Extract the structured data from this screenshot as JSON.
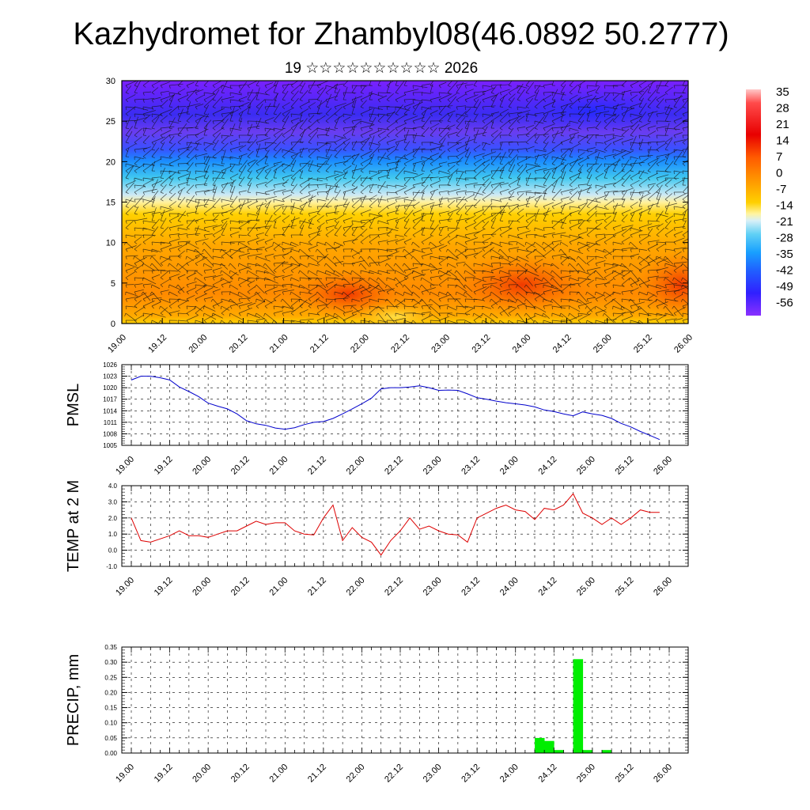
{
  "title": "Kazhydromet for Zhambyl08(46.0892 50.2777)",
  "subtitle": "19 ☆☆☆☆☆☆☆☆☆☆ 2026",
  "time_ticks": [
    "19.00",
    "19.12",
    "20.00",
    "20.12",
    "21.00",
    "21.12",
    "22.00",
    "22.12",
    "23.00",
    "23.12",
    "24.00",
    "24.12",
    "25.00",
    "25.12",
    "26.00"
  ],
  "chart_data": [
    {
      "type": "heatmap",
      "name": "temperature-cross-section",
      "ylabel": "",
      "ylim": [
        0,
        30
      ],
      "y_ticks": [
        0,
        5,
        10,
        15,
        20,
        25,
        30
      ],
      "colorbar_labels": [
        "35",
        "28",
        "21",
        "14",
        "7",
        "0",
        "-7",
        "-14",
        "-21",
        "-28",
        "-35",
        "-42",
        "-49",
        "-56"
      ],
      "colorbar_range": [
        -60,
        38
      ],
      "colors": {
        "cold": "#6a00ff",
        "cool": "#1a8cff",
        "mild": "#ffe600",
        "warm": "#ff8c00",
        "hot": "#e60000"
      }
    },
    {
      "type": "line",
      "name": "pmsl",
      "ylabel": "PMSL",
      "ylim": [
        1005,
        1026
      ],
      "y_ticks": [
        "1005",
        "1008",
        "1011",
        "1014",
        "1017",
        "1020",
        "1023",
        "1026"
      ],
      "color": "#0000cc",
      "x": [
        0,
        3,
        6,
        9,
        12,
        15,
        18,
        21,
        24,
        27,
        30,
        33,
        36,
        39,
        42,
        45,
        48,
        51,
        54,
        57,
        60,
        63,
        66,
        69,
        72,
        75,
        78,
        81,
        84,
        87,
        90,
        93,
        96,
        99,
        102,
        105,
        108,
        111,
        114,
        117,
        120,
        123,
        126,
        129,
        132,
        135,
        138,
        141,
        144,
        147,
        150,
        153,
        156,
        159,
        162,
        165
      ],
      "values": [
        1022.0,
        1023.0,
        1023.0,
        1022.6,
        1022.0,
        1020.2,
        1019.0,
        1017.7,
        1016.0,
        1015.2,
        1014.5,
        1013.2,
        1011.4,
        1010.6,
        1010.2,
        1009.5,
        1009.2,
        1009.6,
        1010.4,
        1011.0,
        1011.2,
        1012.0,
        1013.2,
        1014.5,
        1015.8,
        1017.3,
        1019.7,
        1020.0,
        1020.0,
        1020.2,
        1020.5,
        1020.0,
        1019.3,
        1019.4,
        1019.3,
        1018.4,
        1017.4,
        1017.0,
        1016.5,
        1016.1,
        1015.8,
        1015.5,
        1015.0,
        1014.2,
        1013.8,
        1013.2,
        1012.7,
        1013.7,
        1013.2,
        1012.8,
        1012.0,
        1010.7,
        1009.8,
        1008.6,
        1007.6,
        1006.5
      ]
    },
    {
      "type": "line",
      "name": "temp-2m",
      "ylabel": "TEMP at 2 M",
      "ylim": [
        -1.0,
        4.0
      ],
      "y_ticks": [
        "-1.0",
        "0.0",
        "1.0",
        "2.0",
        "3.0",
        "4.0"
      ],
      "color": "#dd0000",
      "x": [
        0,
        3,
        6,
        9,
        12,
        15,
        18,
        21,
        24,
        27,
        30,
        33,
        36,
        39,
        42,
        45,
        48,
        51,
        54,
        57,
        60,
        63,
        66,
        69,
        72,
        75,
        78,
        81,
        84,
        87,
        90,
        93,
        96,
        99,
        102,
        105,
        108,
        111,
        114,
        117,
        120,
        123,
        126,
        129,
        132,
        135,
        138,
        141,
        144,
        147,
        150,
        153,
        156,
        159,
        162,
        165
      ],
      "values": [
        2.0,
        0.6,
        0.5,
        0.7,
        0.9,
        1.2,
        0.9,
        0.9,
        0.8,
        1.0,
        1.2,
        1.2,
        1.5,
        1.8,
        1.6,
        1.7,
        1.7,
        1.2,
        1.0,
        0.95,
        2.0,
        2.8,
        0.6,
        1.4,
        0.8,
        0.5,
        -0.3,
        0.6,
        1.2,
        2.0,
        1.3,
        1.5,
        1.2,
        1.0,
        0.95,
        0.5,
        2.0,
        2.3,
        2.6,
        2.8,
        2.5,
        2.4,
        1.9,
        2.6,
        2.5,
        2.8,
        3.5,
        2.3,
        2.0,
        1.6,
        2.0,
        1.6,
        2.0,
        2.5,
        2.35,
        2.35
      ]
    },
    {
      "type": "bar",
      "name": "precip",
      "ylabel": "PRECIP, mm",
      "ylim": [
        0,
        0.35
      ],
      "y_ticks": [
        "0.00",
        "0.05",
        "0.10",
        "0.15",
        "0.20",
        "0.25",
        "0.30",
        "0.35"
      ],
      "color": "#00ee00",
      "x": [
        126,
        129,
        132,
        138,
        141,
        147
      ],
      "values": [
        0.05,
        0.04,
        0.01,
        0.31,
        0.01,
        0.01
      ]
    }
  ]
}
